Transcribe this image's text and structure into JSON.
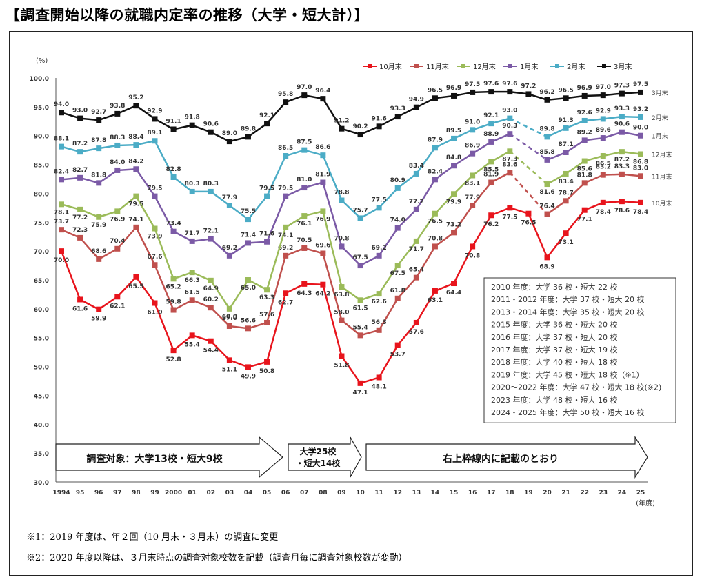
{
  "title": "【調査開始以降の就職内定率の推移（大学・短大計）】",
  "chart_data": {
    "type": "line",
    "ylabel": "(%)",
    "xlabel": "(年度)",
    "ylim": [
      30,
      100
    ],
    "yticks": [
      "30.0",
      "35.0",
      "40.0",
      "45.0",
      "50.0",
      "55.0",
      "60.0",
      "65.0",
      "70.0",
      "75.0",
      "80.0",
      "85.0",
      "90.0",
      "95.0",
      "100.0"
    ],
    "categories": [
      "1994",
      "95",
      "96",
      "97",
      "98",
      "99",
      "2000",
      "01",
      "02",
      "03",
      "04",
      "05",
      "06",
      "07",
      "08",
      "09",
      "10",
      "11",
      "12",
      "13",
      "14",
      "15",
      "16",
      "17",
      "18",
      "19",
      "20",
      "21",
      "22",
      "23",
      "24",
      "25"
    ],
    "legend": [
      "10月末",
      "11月末",
      "12月末",
      "1月末",
      "2月末",
      "3月末"
    ],
    "series": [
      {
        "name": "10月末",
        "color": "#e8141c",
        "end_label": "10月末",
        "values": [
          70.0,
          61.6,
          59.9,
          62.1,
          65.5,
          61.0,
          52.8,
          55.4,
          54.4,
          51.1,
          49.9,
          50.8,
          62.7,
          64.3,
          64.2,
          51.8,
          47.1,
          48.1,
          53.7,
          57.6,
          63.1,
          64.4,
          70.8,
          76.2,
          77.5,
          76.5,
          68.9,
          73.1,
          77.1,
          78.4,
          78.6,
          78.4
        ]
      },
      {
        "name": "11月末",
        "color": "#c0504d",
        "end_label": "11月末",
        "values": [
          73.7,
          72.3,
          68.6,
          70.4,
          74.1,
          67.6,
          59.8,
          61.5,
          60.2,
          57.0,
          56.6,
          57.6,
          69.2,
          70.5,
          69.6,
          58.0,
          55.4,
          56.3,
          61.8,
          65.4,
          70.8,
          73.2,
          77.9,
          81.9,
          83.6,
          null,
          76.4,
          78.7,
          81.8,
          83.2,
          83.3,
          83.0
        ]
      },
      {
        "name": "12月末",
        "color": "#9bbb59",
        "end_label": "12月末",
        "values": [
          78.1,
          77.2,
          75.9,
          76.9,
          79.5,
          73.9,
          65.2,
          66.3,
          64.9,
          60.0,
          65.0,
          63.3,
          74.1,
          76.1,
          76.9,
          63.8,
          61.5,
          62.6,
          67.5,
          71.7,
          76.5,
          79.9,
          83.1,
          85.5,
          87.3,
          null,
          81.6,
          83.4,
          85.6,
          86.5,
          87.2,
          86.8
        ]
      },
      {
        "name": "1月末",
        "color": "#7b5aa6",
        "end_label": "1月末",
        "values": [
          82.4,
          82.7,
          81.8,
          84.0,
          84.2,
          79.5,
          73.4,
          71.7,
          72.1,
          69.2,
          71.4,
          71.6,
          79.5,
          81.0,
          81.9,
          70.8,
          67.5,
          69.2,
          74.0,
          77.2,
          82.4,
          84.8,
          86.9,
          88.9,
          90.3,
          null,
          85.8,
          87.1,
          89.2,
          89.6,
          90.6,
          90.0
        ]
      },
      {
        "name": "2月末",
        "color": "#4bacc6",
        "end_label": "2月末",
        "values": [
          88.1,
          87.2,
          87.8,
          88.3,
          88.4,
          89.1,
          82.8,
          80.3,
          80.3,
          77.9,
          75.5,
          79.5,
          86.5,
          87.5,
          86.6,
          78.8,
          75.7,
          77.5,
          80.9,
          83.4,
          87.9,
          89.5,
          91.0,
          92.1,
          93.0,
          null,
          89.8,
          91.3,
          92.6,
          92.9,
          93.3,
          93.2
        ]
      },
      {
        "name": "3月末",
        "color": "#111111",
        "end_label": "3月末",
        "values": [
          94.0,
          93.0,
          92.7,
          93.8,
          95.2,
          92.9,
          91.1,
          91.8,
          90.6,
          89.0,
          89.8,
          92.1,
          95.8,
          97.0,
          96.4,
          91.2,
          90.2,
          91.6,
          93.3,
          94.9,
          96.5,
          96.9,
          97.5,
          97.6,
          97.6,
          97.2,
          96.2,
          96.5,
          96.9,
          97.0,
          97.3,
          97.5
        ]
      }
    ],
    "arrows": [
      {
        "label": "調査対象：大学13校・短大9校"
      },
      {
        "label": "大学25校・短大14校"
      },
      {
        "label": "右上枠線内に記載のとおり"
      }
    ],
    "note_box": [
      "2010 年度：大学 36 校・短大 22 校",
      "2011・2012 年度：大学 37 校・短大 20 校",
      "2013・2014 年度：大学 35 校・短大 20 校",
      "2015 年度：大学 36 校・短大 20 校",
      "2016 年度：大学 37 校・短大 20 校",
      "2017 年度：大学 37 校・短大 19 校",
      "2018 年度：大学 40 校・短大 18 校",
      "2019 年度：大学 45 校・短大 18 校（※1）",
      "2020～2022 年度：大学 47 校・短大 18 校(※2)",
      "2023 年度：大学 48 校・短大 16 校",
      "2024・2025 年度：大学 50 校・短大 16 校"
    ]
  },
  "footnotes": {
    "note1": "※1：2019 年度は、年２回（10 月末・３月末）の調査に変更",
    "note2": "※2：2020 年度以降は、３月末時点の調査対象校数を記載（調査月毎に調査対象校数が変動）"
  }
}
